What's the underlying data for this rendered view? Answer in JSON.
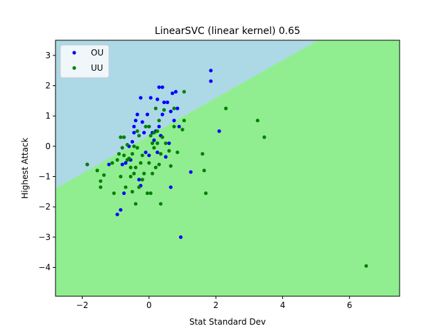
{
  "chart_data": {
    "type": "scatter",
    "title": "LinearSVC (linear kernel) 0.65",
    "xlabel": "Stat Standard Dev",
    "ylabel": "Highest Attack",
    "xlim": [
      -2.8,
      7.5
    ],
    "ylim": [
      -4.95,
      3.5
    ],
    "xticks": [
      -2,
      0,
      2,
      4,
      6
    ],
    "yticks": [
      -4,
      -3,
      -2,
      -1,
      0,
      1,
      2,
      3
    ],
    "grid": false,
    "legend_position": "top-left",
    "decision_boundary": {
      "points": [
        [
          -2.8,
          -1.4
        ],
        [
          5.07,
          3.5
        ]
      ]
    },
    "regions": [
      {
        "name": "OU",
        "color": "#add8e6"
      },
      {
        "name": "UU",
        "color": "#90ee90"
      }
    ],
    "series": [
      {
        "name": "OU",
        "color": "#0000ff",
        "points": [
          [
            -1.85,
            -0.6
          ],
          [
            -1.2,
            -0.6
          ],
          [
            -0.95,
            -2.25
          ],
          [
            -0.85,
            -2.1
          ],
          [
            -0.8,
            -0.6
          ],
          [
            -0.75,
            -1.55
          ],
          [
            -0.7,
            -0.55
          ],
          [
            -0.6,
            0.0
          ],
          [
            -0.55,
            -0.45
          ],
          [
            -0.5,
            0.15
          ],
          [
            -0.45,
            0.45
          ],
          [
            -0.45,
            0.65
          ],
          [
            -0.4,
            0.85
          ],
          [
            -0.35,
            1.05
          ],
          [
            -0.3,
            -1.1
          ],
          [
            -0.25,
            -1.3
          ],
          [
            -0.25,
            1.6
          ],
          [
            -0.2,
            0.8
          ],
          [
            -0.15,
            0.45
          ],
          [
            -0.1,
            -0.2
          ],
          [
            -0.05,
            1.05
          ],
          [
            0.0,
            0.65
          ],
          [
            0.0,
            -0.3
          ],
          [
            0.05,
            1.6
          ],
          [
            0.1,
            0.45
          ],
          [
            0.15,
            0.2
          ],
          [
            0.2,
            0.5
          ],
          [
            0.25,
            1.55
          ],
          [
            0.25,
            -0.2
          ],
          [
            0.3,
            0.65
          ],
          [
            0.3,
            1.95
          ],
          [
            0.35,
            0.35
          ],
          [
            0.4,
            1.95
          ],
          [
            0.4,
            1.05
          ],
          [
            0.45,
            1.45
          ],
          [
            0.5,
            -0.35
          ],
          [
            0.55,
            1.45
          ],
          [
            0.6,
            0.1
          ],
          [
            0.65,
            1.15
          ],
          [
            0.7,
            1.75
          ],
          [
            0.75,
            0.85
          ],
          [
            0.8,
            1.8
          ],
          [
            0.85,
            1.25
          ],
          [
            0.9,
            0.65
          ],
          [
            0.65,
            -1.35
          ],
          [
            0.95,
            -3.0
          ],
          [
            1.25,
            -0.85
          ],
          [
            1.85,
            2.5
          ],
          [
            1.85,
            2.15
          ],
          [
            2.1,
            0.5
          ]
        ]
      },
      {
        "name": "UU",
        "color": "#008000",
        "points": [
          [
            -1.85,
            -0.6
          ],
          [
            -1.55,
            -0.8
          ],
          [
            -1.45,
            -1.15
          ],
          [
            -1.45,
            -1.35
          ],
          [
            -1.35,
            -0.95
          ],
          [
            -1.1,
            -0.55
          ],
          [
            -1.05,
            -1.55
          ],
          [
            -0.95,
            -0.45
          ],
          [
            -0.9,
            -0.25
          ],
          [
            -0.85,
            0.3
          ],
          [
            -0.85,
            -1.0
          ],
          [
            -0.8,
            -0.05
          ],
          [
            -0.75,
            -0.3
          ],
          [
            -0.75,
            0.3
          ],
          [
            -0.7,
            -1.35
          ],
          [
            -0.65,
            -0.45
          ],
          [
            -0.65,
            0.05
          ],
          [
            -0.6,
            -0.4
          ],
          [
            -0.55,
            -0.7
          ],
          [
            -0.55,
            -1.0
          ],
          [
            -0.5,
            -1.5
          ],
          [
            -0.5,
            -0.25
          ],
          [
            -0.45,
            -0.9
          ],
          [
            -0.45,
            0.0
          ],
          [
            -0.4,
            -1.9
          ],
          [
            -0.4,
            -0.7
          ],
          [
            -0.35,
            -0.05
          ],
          [
            -0.35,
            0.5
          ],
          [
            -0.3,
            -1.35
          ],
          [
            -0.3,
            0.35
          ],
          [
            -0.25,
            -0.55
          ],
          [
            -0.2,
            -1.1
          ],
          [
            -0.2,
            -0.3
          ],
          [
            -0.15,
            -0.9
          ],
          [
            -0.1,
            0.65
          ],
          [
            -0.05,
            -1.55
          ],
          [
            0.0,
            -0.55
          ],
          [
            0.0,
            0.65
          ],
          [
            0.05,
            0.35
          ],
          [
            0.05,
            -1.55
          ],
          [
            0.1,
            -0.9
          ],
          [
            0.1,
            0.1
          ],
          [
            0.15,
            0.45
          ],
          [
            0.15,
            -0.05
          ],
          [
            0.2,
            1.25
          ],
          [
            0.2,
            -0.7
          ],
          [
            0.25,
            0.1
          ],
          [
            0.25,
            0.5
          ],
          [
            0.3,
            -0.6
          ],
          [
            0.3,
            0.85
          ],
          [
            0.35,
            -1.9
          ],
          [
            0.35,
            -0.25
          ],
          [
            0.4,
            0.3
          ],
          [
            0.45,
            1.2
          ],
          [
            0.5,
            0.1
          ],
          [
            0.6,
            -0.15
          ],
          [
            0.65,
            -0.65
          ],
          [
            0.75,
            1.25
          ],
          [
            0.75,
            0.65
          ],
          [
            0.85,
            -0.2
          ],
          [
            1.0,
            0.55
          ],
          [
            1.05,
            1.8
          ],
          [
            1.05,
            0.85
          ],
          [
            1.6,
            -0.25
          ],
          [
            1.65,
            -0.8
          ],
          [
            1.7,
            -1.55
          ],
          [
            2.3,
            1.25
          ],
          [
            3.25,
            0.85
          ],
          [
            3.45,
            0.3
          ],
          [
            6.5,
            -3.95
          ]
        ]
      }
    ]
  }
}
